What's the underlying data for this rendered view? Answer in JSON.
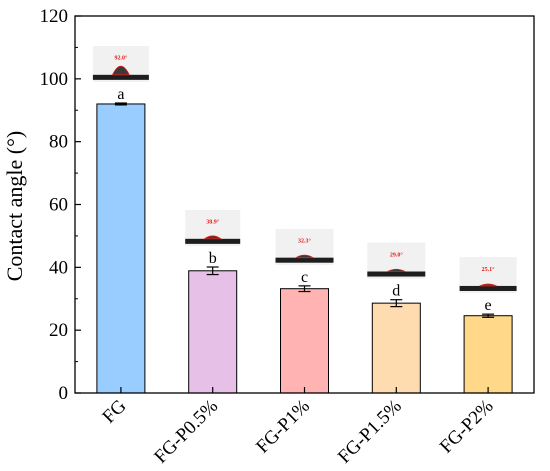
{
  "chart_data": {
    "type": "bar",
    "title": "",
    "xlabel": "",
    "ylabel": "Contact angle (°)",
    "ylim": [
      0,
      120
    ],
    "yticks": [
      "0",
      "20",
      "40",
      "60",
      "80",
      "100",
      "120"
    ],
    "grid": false,
    "categories": [
      "FG",
      "FG-P0.5%",
      "FG-P1%",
      "FG-P1.5%",
      "FG-P2%"
    ],
    "values": [
      92.0,
      38.9,
      33.2,
      28.6,
      24.6
    ],
    "errors": [
      0.3,
      1.2,
      0.9,
      1.1,
      0.5
    ],
    "significance_letters": [
      "a",
      "b",
      "c",
      "d",
      "e"
    ],
    "colors": [
      "#99ccff",
      "#e6c0e6",
      "#ffb3b3",
      "#ffdcb0",
      "#ffd88a"
    ],
    "inset_angle_labels": [
      "92.0°",
      "38.9°",
      "32.3°",
      "29.0°",
      "25.1°"
    ]
  }
}
